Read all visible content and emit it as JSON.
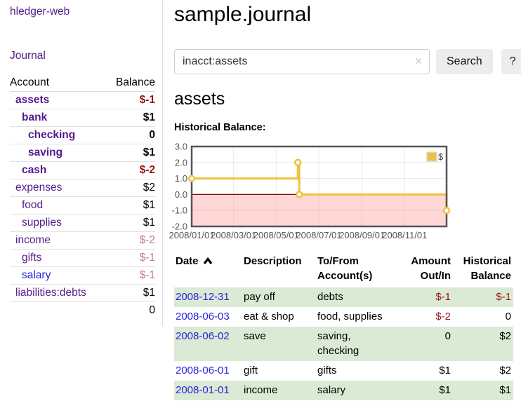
{
  "app": {
    "brand": "hledger-web",
    "nav_journal": "Journal"
  },
  "colors": {
    "link_purple": "#551a8b",
    "link_blue": "#2724dd",
    "negative_strong": "#991414",
    "negative_faded": "#c17d7d",
    "row_stripe_green": "#dbead5"
  },
  "sidebar": {
    "accounts_header": {
      "account": "Account",
      "balance": "Balance"
    },
    "accounts": [
      {
        "name": "assets",
        "indent": 0,
        "bold": true,
        "balance": "$-1",
        "balance_style": "neg"
      },
      {
        "name": "bank",
        "indent": 1,
        "bold": true,
        "balance": "$1",
        "balance_style": "pos"
      },
      {
        "name": "checking",
        "indent": 2,
        "bold": true,
        "balance": "0",
        "balance_style": "pos"
      },
      {
        "name": "saving",
        "indent": 2,
        "bold": true,
        "balance": "$1",
        "balance_style": "pos"
      },
      {
        "name": "cash",
        "indent": 1,
        "bold": true,
        "balance": "$-2",
        "balance_style": "neg"
      },
      {
        "name": "expenses",
        "indent": 0,
        "bold": false,
        "balance": "$2",
        "balance_style": "pos"
      },
      {
        "name": "food",
        "indent": 1,
        "bold": false,
        "balance": "$1",
        "balance_style": "pos"
      },
      {
        "name": "supplies",
        "indent": 1,
        "bold": false,
        "balance": "$1",
        "balance_style": "pos"
      },
      {
        "name": "income",
        "indent": 0,
        "bold": false,
        "balance": "$-2",
        "balance_style": "negf"
      },
      {
        "name": "gifts",
        "indent": 1,
        "bold": false,
        "balance": "$-1",
        "balance_style": "negf"
      },
      {
        "name": "salary",
        "indent": 1,
        "bold": false,
        "balance": "$-1",
        "balance_style": "negf",
        "unvisited": true
      },
      {
        "name": "liabilities:debts",
        "indent": 0,
        "bold": false,
        "balance": "$1",
        "balance_style": "pos"
      }
    ],
    "total": "0"
  },
  "main": {
    "title": "sample.journal",
    "search": {
      "value": "inacct:assets",
      "clear_label": "✕",
      "button": "Search",
      "help": "?"
    },
    "account_heading": "assets",
    "chart_label": "Historical Balance:"
  },
  "chart_data": {
    "type": "line",
    "style": "step",
    "title": "Historical Balance:",
    "xlabel": "",
    "ylabel": "",
    "grid": true,
    "legend_position": "top-right",
    "xlim": [
      "2008-01-01",
      "2008-12-31"
    ],
    "ylim": [
      -2,
      3
    ],
    "y_ticks": [
      3,
      2,
      1,
      0,
      -1,
      -2
    ],
    "x_ticks": [
      {
        "label": "2008/01/01",
        "date": "2008-01-01"
      },
      {
        "label": "2008/03/01",
        "date": "2008-03-01"
      },
      {
        "label": "2008/05/01",
        "date": "2008-05-01"
      },
      {
        "label": "2008/07/01",
        "date": "2008-07-01"
      },
      {
        "label": "2008/09/01",
        "date": "2008-09-01"
      },
      {
        "label": "2008/11/01",
        "date": "2008-11-01"
      }
    ],
    "series": [
      {
        "name": "$",
        "color": "#edc240",
        "points": [
          {
            "date": "2008-01-01",
            "value": 1
          },
          {
            "date": "2008-06-01",
            "value": 2
          },
          {
            "date": "2008-06-03",
            "value": 0
          },
          {
            "date": "2008-12-31",
            "value": -1
          }
        ]
      }
    ],
    "colors": {
      "grid": "#e8e8e8",
      "border": "#545454",
      "tick_text": "#545454",
      "zero_line": "#8b0000",
      "negative_region": "rgba(255,150,150,0.38)"
    }
  },
  "register": {
    "headers": {
      "date": "Date",
      "description": "Description",
      "account": "To/From Account(s)",
      "amount": "Amount Out/In",
      "balance": "Historical Balance"
    },
    "sort": {
      "column": "date",
      "direction": "asc"
    },
    "rows": [
      {
        "date": "2008-12-31",
        "description": "pay off",
        "accounts": "debts",
        "amount": "$-1",
        "amount_neg": true,
        "balance": "$-1",
        "balance_neg": true
      },
      {
        "date": "2008-06-03",
        "description": "eat & shop",
        "accounts": "food, supplies",
        "amount": "$-2",
        "amount_neg": true,
        "balance": "0",
        "balance_neg": false
      },
      {
        "date": "2008-06-02",
        "description": "save",
        "accounts": "saving, checking",
        "amount": "0",
        "amount_neg": false,
        "balance": "$2",
        "balance_neg": false
      },
      {
        "date": "2008-06-01",
        "description": "gift",
        "accounts": "gifts",
        "amount": "$1",
        "amount_neg": false,
        "balance": "$2",
        "balance_neg": false
      },
      {
        "date": "2008-01-01",
        "description": "income",
        "accounts": "salary",
        "amount": "$1",
        "amount_neg": false,
        "balance": "$1",
        "balance_neg": false
      }
    ]
  }
}
